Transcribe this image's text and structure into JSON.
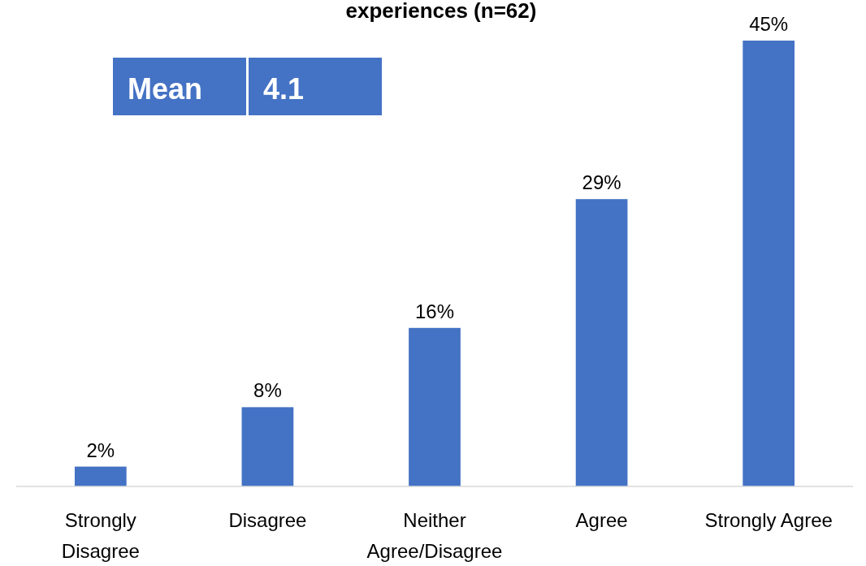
{
  "chart_data": {
    "type": "bar",
    "title": "experiences (n=62)",
    "categories": [
      "Strongly Disagree",
      "Disagree",
      "Neither Agree/Disagree",
      "Agree",
      "Strongly Agree"
    ],
    "values": [
      2,
      8,
      16,
      29,
      45
    ],
    "color": "#4472c4",
    "data_labels": true,
    "value_labels": [
      "2%",
      "8%",
      "16%",
      "29%",
      "45%"
    ],
    "annotations": [
      "Mean",
      "4.1"
    ]
  }
}
